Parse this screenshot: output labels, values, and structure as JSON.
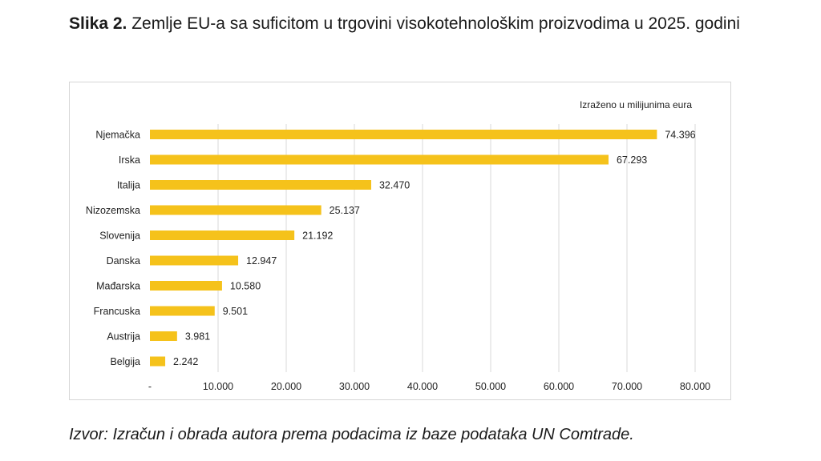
{
  "caption": {
    "label": "Slika 2.",
    "text": "Zemlje EU-a sa suficitom u trgovini visokotehnološkim proizvodima u 2025. godini"
  },
  "source": "Izvor: Izračun i obrada autora prema podacima iz baze podataka UN Comtrade.",
  "colors": {
    "bar": "#F5C21B",
    "grid": "#d9d9d9",
    "text": "#222222"
  },
  "chart_data": {
    "type": "bar",
    "orientation": "horizontal",
    "unit_note": "Izraženo u milijunima eura",
    "categories": [
      "Njemačka",
      "Irska",
      "Italija",
      "Nizozemska",
      "Slovenija",
      "Danska",
      "Mađarska",
      "Francuska",
      "Austrija",
      "Belgija"
    ],
    "values": [
      74396,
      67293,
      32470,
      25137,
      21192,
      12947,
      10580,
      9501,
      3981,
      2242
    ],
    "value_labels": [
      "74.396",
      "67.293",
      "32.470",
      "25.137",
      "21.192",
      "12.947",
      "10.580",
      "9.501",
      "3.981",
      "2.242"
    ],
    "xlim": [
      0,
      80000
    ],
    "x_ticks": [
      0,
      10000,
      20000,
      30000,
      40000,
      50000,
      60000,
      70000,
      80000
    ],
    "x_tick_labels": [
      "-",
      "10.000",
      "20.000",
      "30.000",
      "40.000",
      "50.000",
      "60.000",
      "70.000",
      "80.000"
    ],
    "grid": true,
    "legend": false
  }
}
